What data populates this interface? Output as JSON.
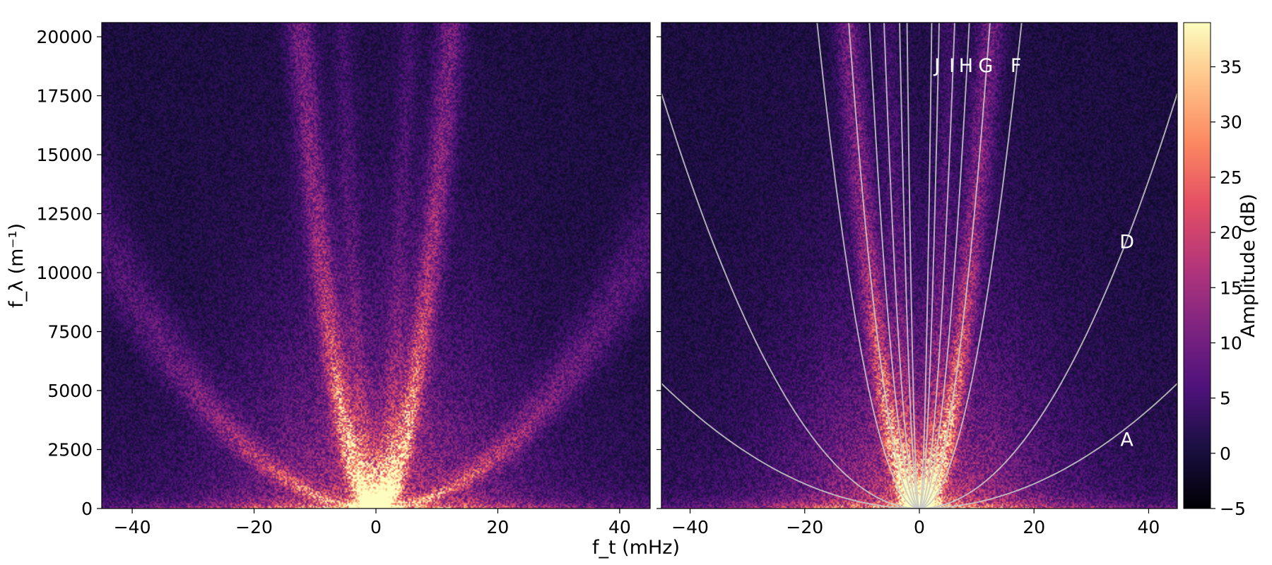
{
  "chart_data": {
    "type": "heatmap",
    "colormap": "magma",
    "shared_xlabel": "f_t (mHz)",
    "shared_ylabel": "f_λ (m⁻¹)",
    "xlim": [
      -45,
      45
    ],
    "ylim": [
      0,
      20600
    ],
    "xticks": [
      -40,
      -20,
      0,
      20,
      40
    ],
    "yticks": [
      0,
      2500,
      5000,
      7500,
      10000,
      12500,
      15000,
      17500,
      20000
    ],
    "panels": [
      {
        "name": "left",
        "ridges": [
          {
            "half_width_mHz_at_top": 12.5,
            "strength": 1.0
          },
          {
            "half_width_mHz_at_top": 5.5,
            "strength": 0.35
          },
          {
            "half_width_mHz_at_top": 60,
            "strength": 0.45
          }
        ],
        "curves": []
      },
      {
        "name": "right",
        "ridges": [
          {
            "half_width_mHz_at_top": 12.5,
            "strength": 1.0
          },
          {
            "half_width_mHz_at_top": 5.5,
            "strength": 0.35
          }
        ],
        "curves": [
          {
            "label": "A",
            "y_at_x45": 5300
          },
          {
            "label": "D",
            "y_at_x45": 17600
          },
          {
            "label": "F",
            "y_at_x45": 131000
          },
          {
            "label": "G",
            "y_at_x45": 275000
          },
          {
            "label": "H",
            "y_at_x45": 550000
          },
          {
            "label": "I",
            "y_at_x45": 1100000
          },
          {
            "label": "J",
            "y_at_x45": 3500000
          },
          {
            "label": "",
            "y_at_x45": 9000000
          }
        ]
      }
    ],
    "colorbar": {
      "label": "Amplitude (dB)",
      "range": [
        -5,
        39
      ],
      "ticks": [
        -5,
        0,
        5,
        10,
        15,
        20,
        25,
        30,
        35
      ]
    }
  }
}
